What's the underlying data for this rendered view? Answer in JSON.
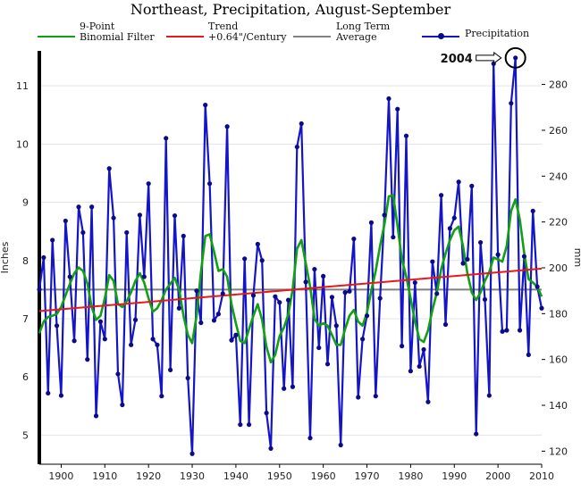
{
  "chart_data": {
    "type": "line",
    "title": "Northeast, Precipitation, August-September",
    "ylabel_left": "Inches",
    "ylabel_right": "mm",
    "xlim": [
      1895,
      2010
    ],
    "ylim_inches": [
      4.5,
      11.6
    ],
    "x_ticks": [
      1900,
      1910,
      1920,
      1930,
      1940,
      1950,
      1960,
      1970,
      1980,
      1990,
      2000,
      2010
    ],
    "y_ticks_inches": [
      5,
      6,
      7,
      8,
      9,
      10,
      11
    ],
    "y_ticks_mm": [
      120,
      140,
      160,
      180,
      200,
      220,
      240,
      260,
      280
    ],
    "grid": true,
    "legend": [
      {
        "name": "9-Point\nBinomial Filter",
        "color": "#12a012"
      },
      {
        "name": "Trend\n+0.64\"/Century",
        "color": "#e81818"
      },
      {
        "name": "Long Term\nAverage",
        "color": "#808080"
      },
      {
        "name": "Precipitation",
        "color": "#1414c8"
      }
    ],
    "annotation": {
      "label": "2004",
      "year": 2004
    },
    "series": [
      {
        "name": "Precipitation",
        "color": "#1414c8",
        "x": [
          1895,
          1896,
          1897,
          1898,
          1899,
          1900,
          1901,
          1902,
          1903,
          1904,
          1905,
          1906,
          1907,
          1908,
          1909,
          1910,
          1911,
          1912,
          1913,
          1914,
          1915,
          1916,
          1917,
          1918,
          1919,
          1920,
          1921,
          1922,
          1923,
          1924,
          1925,
          1926,
          1927,
          1928,
          1929,
          1930,
          1931,
          1932,
          1933,
          1934,
          1935,
          1936,
          1937,
          1938,
          1939,
          1940,
          1941,
          1942,
          1943,
          1944,
          1945,
          1946,
          1947,
          1948,
          1949,
          1950,
          1951,
          1952,
          1953,
          1954,
          1955,
          1956,
          1957,
          1958,
          1959,
          1960,
          1961,
          1962,
          1963,
          1964,
          1965,
          1966,
          1967,
          1968,
          1969,
          1970,
          1971,
          1972,
          1973,
          1974,
          1975,
          1976,
          1977,
          1978,
          1979,
          1980,
          1981,
          1982,
          1983,
          1984,
          1985,
          1986,
          1987,
          1988,
          1989,
          1990,
          1991,
          1992,
          1993,
          1994,
          1995,
          1996,
          1997,
          1998,
          1999,
          2000,
          2001,
          2002,
          2003,
          2004,
          2005,
          2006,
          2007,
          2008,
          2009,
          2010
        ],
        "values": [
          7.5,
          8.05,
          5.72,
          8.35,
          6.88,
          5.68,
          8.68,
          7.72,
          6.62,
          8.92,
          8.48,
          6.3,
          8.92,
          5.33,
          6.95,
          6.65,
          9.58,
          8.73,
          6.05,
          5.52,
          8.48,
          6.55,
          6.98,
          8.78,
          7.72,
          9.32,
          6.65,
          6.55,
          5.67,
          10.1,
          6.12,
          8.77,
          7.18,
          8.42,
          5.98,
          4.68,
          7.48,
          6.93,
          10.67,
          9.32,
          6.97,
          7.08,
          7.43,
          10.3,
          6.63,
          6.72,
          5.18,
          8.03,
          5.18,
          7.4,
          8.28,
          8.0,
          5.38,
          4.77,
          7.38,
          7.28,
          5.8,
          7.32,
          5.83,
          9.95,
          10.35,
          7.63,
          4.95,
          7.85,
          6.5,
          7.73,
          6.22,
          7.37,
          6.88,
          4.83,
          7.45,
          7.47,
          8.37,
          5.65,
          6.65,
          7.05,
          8.65,
          5.67,
          7.35,
          8.78,
          10.78,
          8.4,
          10.6,
          6.53,
          10.14,
          6.1,
          7.62,
          6.18,
          6.47,
          5.57,
          7.98,
          7.43,
          9.12,
          6.9,
          8.55,
          8.73,
          9.35,
          7.95,
          8.02,
          9.28,
          5.02,
          8.31,
          7.33,
          5.68,
          11.38,
          8.1,
          6.78,
          6.8,
          10.7,
          11.48,
          6.8,
          8.07,
          6.38,
          8.85,
          7.55,
          7.18
        ]
      },
      {
        "name": "9-Point Binomial Filter",
        "color": "#12a012",
        "x": [
          1895,
          1896,
          1897,
          1898,
          1899,
          1900,
          1901,
          1902,
          1903,
          1904,
          1905,
          1906,
          1907,
          1908,
          1909,
          1910,
          1911,
          1912,
          1913,
          1914,
          1915,
          1916,
          1917,
          1918,
          1919,
          1920,
          1921,
          1922,
          1923,
          1924,
          1925,
          1926,
          1927,
          1928,
          1929,
          1930,
          1931,
          1932,
          1933,
          1934,
          1935,
          1936,
          1937,
          1938,
          1939,
          1940,
          1941,
          1942,
          1943,
          1944,
          1945,
          1946,
          1947,
          1948,
          1949,
          1950,
          1951,
          1952,
          1953,
          1954,
          1955,
          1956,
          1957,
          1958,
          1959,
          1960,
          1961,
          1962,
          1963,
          1964,
          1965,
          1966,
          1967,
          1968,
          1969,
          1970,
          1971,
          1972,
          1973,
          1974,
          1975,
          1976,
          1977,
          1978,
          1979,
          1980,
          1981,
          1982,
          1983,
          1984,
          1985,
          1986,
          1987,
          1988,
          1989,
          1990,
          1991,
          1992,
          1993,
          1994,
          1995,
          1996,
          1997,
          1998,
          1999,
          2000,
          2001,
          2002,
          2003,
          2004,
          2005,
          2006,
          2007,
          2008,
          2009,
          2010
        ],
        "values": [
          6.75,
          6.95,
          7.03,
          7.05,
          7.08,
          7.2,
          7.4,
          7.6,
          7.78,
          7.88,
          7.82,
          7.6,
          7.2,
          6.98,
          7.05,
          7.35,
          7.75,
          7.65,
          7.25,
          7.2,
          7.3,
          7.45,
          7.65,
          7.78,
          7.62,
          7.35,
          7.12,
          7.18,
          7.32,
          7.5,
          7.6,
          7.7,
          7.5,
          7.05,
          6.72,
          6.58,
          7.05,
          7.8,
          8.42,
          8.45,
          8.15,
          7.82,
          7.85,
          7.72,
          7.25,
          6.92,
          6.62,
          6.58,
          6.82,
          7.05,
          7.25,
          6.98,
          6.52,
          6.25,
          6.38,
          6.7,
          6.85,
          7.08,
          7.5,
          8.2,
          8.35,
          7.95,
          7.55,
          7.0,
          6.88,
          6.92,
          6.88,
          6.72,
          6.55,
          6.55,
          6.82,
          7.05,
          7.15,
          6.95,
          6.88,
          7.1,
          7.48,
          7.82,
          8.25,
          8.62,
          9.1,
          9.12,
          8.6,
          8.02,
          7.72,
          7.35,
          6.95,
          6.65,
          6.6,
          6.8,
          7.15,
          7.45,
          7.85,
          8.12,
          8.35,
          8.52,
          8.58,
          8.25,
          7.78,
          7.45,
          7.32,
          7.45,
          7.65,
          7.8,
          8.05,
          8.02,
          7.98,
          8.25,
          8.85,
          9.05,
          8.7,
          8.12,
          7.68,
          7.62,
          7.55,
          7.38
        ]
      },
      {
        "name": "Trend +0.64\"/Century",
        "color": "#e81818",
        "type": "trend",
        "x": [
          1895,
          2010
        ],
        "values": [
          7.13,
          7.86
        ]
      },
      {
        "name": "Long Term Average",
        "color": "#808080",
        "type": "hline",
        "x": [
          1895,
          2010
        ],
        "values": [
          7.5,
          7.5
        ]
      }
    ]
  }
}
